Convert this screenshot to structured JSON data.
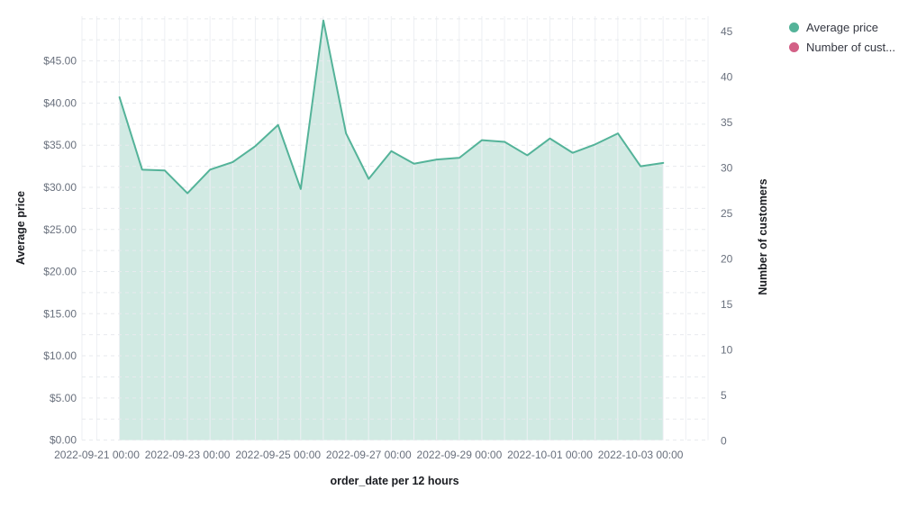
{
  "chart_data": {
    "type": "area",
    "title": "",
    "xlabel": "order_date per 12 hours",
    "grid": true,
    "legend_position": "top-right",
    "x_tick_labels": [
      "2022-09-21 00:00",
      "2022-09-23 00:00",
      "2022-09-25 00:00",
      "2022-09-27 00:00",
      "2022-09-29 00:00",
      "2022-10-01 00:00",
      "2022-10-03 00:00"
    ],
    "left_axis": {
      "title": "Average price",
      "tick_values": [
        0,
        5,
        10,
        15,
        20,
        25,
        30,
        35,
        40,
        45
      ],
      "tick_labels": [
        "$0.00",
        "$5.00",
        "$10.00",
        "$15.00",
        "$20.00",
        "$25.00",
        "$30.00",
        "$35.00",
        "$40.00",
        "$45.00"
      ],
      "range": [
        0,
        50.3
      ]
    },
    "right_axis": {
      "title": "Number of customers",
      "tick_values": [
        0,
        5,
        10,
        15,
        20,
        25,
        30,
        35,
        40,
        45
      ],
      "tick_labels": [
        "0",
        "5",
        "10",
        "15",
        "20",
        "25",
        "30",
        "35",
        "40",
        "45"
      ],
      "range": [
        0,
        46.6
      ]
    },
    "x": [
      "2022-09-21 12:00",
      "2022-09-22 00:00",
      "2022-09-22 12:00",
      "2022-09-23 00:00",
      "2022-09-23 12:00",
      "2022-09-24 00:00",
      "2022-09-24 12:00",
      "2022-09-25 00:00",
      "2022-09-25 12:00",
      "2022-09-26 00:00",
      "2022-09-26 12:00",
      "2022-09-27 00:00",
      "2022-09-27 12:00",
      "2022-09-28 00:00",
      "2022-09-28 12:00",
      "2022-09-29 00:00",
      "2022-09-29 12:00",
      "2022-09-30 00:00",
      "2022-09-30 12:00",
      "2022-10-01 00:00",
      "2022-10-01 12:00",
      "2022-10-02 00:00",
      "2022-10-02 12:00",
      "2022-10-03 00:00",
      "2022-10-03 12:00"
    ],
    "series": [
      {
        "name": "Average price",
        "type": "area",
        "axis": "left",
        "color": "#54B399",
        "fill_opacity": 0.27,
        "values": [
          40.7,
          32.1,
          32.0,
          29.3,
          32.1,
          33.0,
          34.9,
          37.4,
          29.8,
          49.8,
          36.4,
          31.0,
          34.3,
          32.8,
          33.3,
          33.5,
          35.6,
          35.4,
          33.8,
          35.8,
          34.1,
          35.1,
          36.4,
          32.5,
          32.9
        ]
      },
      {
        "name": "Number of cust...",
        "type": "line",
        "axis": "right",
        "color": "#D36086",
        "values": []
      }
    ]
  },
  "legend": {
    "items": [
      {
        "label": "Average price",
        "color": "#54B399"
      },
      {
        "label": "Number of cust...",
        "color": "#D36086"
      }
    ]
  },
  "style": {
    "grid_color_vertical": "#edeff3",
    "grid_color_horizontal": "#e7eaee",
    "tick_label_color": "#69707d",
    "axis_title_color": "#1a1c21"
  }
}
